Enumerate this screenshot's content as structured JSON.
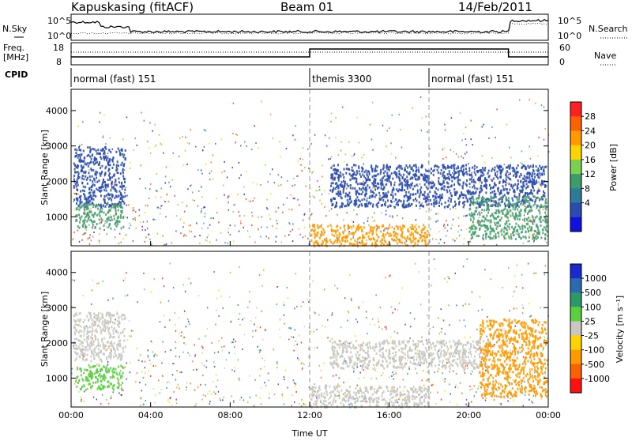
{
  "header": {
    "site": "Kapuskasing (fitACF)",
    "beam": "Beam 01",
    "date": "14/Feb/2011"
  },
  "status_panel": {
    "left_label_1": "N.Sky",
    "left_label_2_line1": "Freq.",
    "left_label_2_line2": "[MHz]",
    "left_label_3": "CPID",
    "right_label_1": "N.Search",
    "right_label_2": "Nave",
    "nsky_ticks": [
      "10^5",
      "10^0"
    ],
    "nsearch_ticks": [
      "10^5",
      "10^0"
    ],
    "freq_ticks": [
      "18",
      "8"
    ],
    "nave_ticks": [
      "60",
      "0"
    ],
    "cpid_segments": [
      {
        "label": "normal (fast) 151",
        "start_hour": 0,
        "end_hour": 12
      },
      {
        "label": "themis 3300",
        "start_hour": 12,
        "end_hour": 18
      },
      {
        "label": "normal (fast) 151",
        "start_hour": 18,
        "end_hour": 24
      }
    ]
  },
  "chart_data": [
    {
      "type": "heatmap",
      "name": "power-panel",
      "ylabel": "Slant Range [km]",
      "xlabel": "Time UT",
      "x_ticks": [
        "00:00",
        "04:00",
        "08:00",
        "12:00",
        "16:00",
        "20:00",
        "00:00"
      ],
      "x_range_hours": [
        0,
        24
      ],
      "y_ticks": [
        1000,
        2000,
        3000,
        4000
      ],
      "ylim": [
        180,
        4600
      ],
      "colorbar": {
        "label": "Power [dB]",
        "ticks": [
          "28",
          "24",
          "20",
          "16",
          "12",
          "8",
          "4"
        ],
        "colors": [
          "#ff2020",
          "#ff6000",
          "#ff9a00",
          "#ffd400",
          "#7ad050",
          "#3b9c6a",
          "#2e7a9a",
          "#2a4cb0",
          "#1010e0"
        ]
      },
      "regions": [
        {
          "x": [
            0.1,
            2.7
          ],
          "y": [
            1300,
            3000
          ],
          "color": "#2a4cb0"
        },
        {
          "x": [
            0.2,
            2.6
          ],
          "y": [
            700,
            1400
          ],
          "color": "#4aa070"
        },
        {
          "x": [
            12.0,
            18.0
          ],
          "y": [
            200,
            800
          ],
          "color": "#ff9a00"
        },
        {
          "x": [
            13.0,
            23.9
          ],
          "y": [
            1300,
            2500
          ],
          "color": "#2a4cb0"
        },
        {
          "x": [
            20.0,
            23.9
          ],
          "y": [
            400,
            1600
          ],
          "color": "#4aa070"
        }
      ]
    },
    {
      "type": "heatmap",
      "name": "velocity-panel",
      "ylabel": "Slant Range [km]",
      "xlabel": "Time UT",
      "x_ticks": [
        "00:00",
        "04:00",
        "08:00",
        "12:00",
        "16:00",
        "20:00",
        "00:00"
      ],
      "x_range_hours": [
        0,
        24
      ],
      "y_ticks": [
        1000,
        2000,
        3000,
        4000
      ],
      "ylim": [
        180,
        4600
      ],
      "colorbar": {
        "label": "Velocity [m s⁻¹]",
        "ticks": [
          "1000",
          "500",
          "100",
          "25",
          "-25",
          "-100",
          "-500",
          "-1000"
        ],
        "colors": [
          "#1a2ad0",
          "#2a6ab0",
          "#2a9a6a",
          "#5ad040",
          "#c8c8c0",
          "#ffd400",
          "#ff9a00",
          "#ff6000",
          "#ff1010"
        ]
      },
      "regions": [
        {
          "x": [
            0.1,
            2.7
          ],
          "y": [
            1500,
            2900
          ],
          "color": "#c8c8c0"
        },
        {
          "x": [
            0.2,
            2.6
          ],
          "y": [
            700,
            1400
          ],
          "color": "#5ad040"
        },
        {
          "x": [
            12.0,
            18.0
          ],
          "y": [
            200,
            800
          ],
          "color": "#c8c8c0"
        },
        {
          "x": [
            13.0,
            21.0
          ],
          "y": [
            1300,
            2100
          ],
          "color": "#c8c8c0"
        },
        {
          "x": [
            20.5,
            23.9
          ],
          "y": [
            500,
            2700
          ],
          "color": "#ff9a00"
        }
      ]
    }
  ]
}
